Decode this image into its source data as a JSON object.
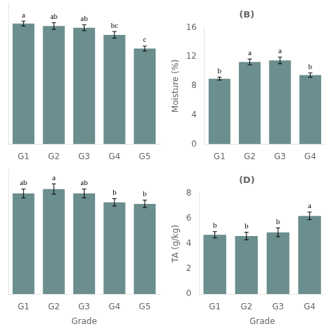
{
  "chart_data": [
    {
      "type": "bar",
      "categories": [
        "G1",
        "G2",
        "G3",
        "G4",
        "G5"
      ],
      "values": [
        14.5,
        14.2,
        14.0,
        13.15,
        11.5
      ],
      "errors": [
        0.3,
        0.4,
        0.35,
        0.4,
        0.3
      ],
      "annotations": [
        "a",
        "ab",
        "ab",
        "bc",
        "c"
      ],
      "color": "#6b8e8e",
      "ylim": [
        0,
        17
      ],
      "tick_labels": "x",
      "grid": false
    },
    {
      "type": "bar",
      "title": "(B)",
      "categories": [
        "G1",
        "G2",
        "G3",
        "G4"
      ],
      "values": [
        9.0,
        11.3,
        11.5,
        9.5
      ],
      "errors": [
        0.2,
        0.4,
        0.45,
        0.3
      ],
      "annotations": [
        "b",
        "a",
        "a",
        "b"
      ],
      "ylabel": "Moisture (%)",
      "color": "#6b8e8e",
      "ylim": [
        0,
        16
      ],
      "yticks": [
        0,
        4,
        8,
        12,
        16
      ],
      "grid": false
    },
    {
      "type": "bar",
      "categories": [
        "G1",
        "G2",
        "G3",
        "G4",
        "G5"
      ],
      "values": [
        6.8,
        7.1,
        6.8,
        6.2,
        6.1
      ],
      "errors": [
        0.3,
        0.35,
        0.3,
        0.25,
        0.25
      ],
      "annotations": [
        "ab",
        "a",
        "ab",
        "b",
        "b"
      ],
      "xlabel": "Grade",
      "color": "#6b8e8e",
      "ylim": [
        0,
        8.5
      ],
      "tick_labels": "x",
      "grid": false
    },
    {
      "type": "bar",
      "title": "(D)",
      "categories": [
        "G1",
        "G2",
        "G3",
        "G4"
      ],
      "values": [
        4.7,
        4.6,
        4.9,
        6.2
      ],
      "errors": [
        0.25,
        0.3,
        0.35,
        0.3
      ],
      "annotations": [
        "b",
        "b",
        "b",
        "a"
      ],
      "ylabel": "TA (g/kg)",
      "xlabel": "Grade",
      "color": "#6b8e8e",
      "ylim": [
        0,
        8
      ],
      "yticks": [
        0,
        2,
        4,
        6,
        8
      ],
      "grid": false
    }
  ]
}
